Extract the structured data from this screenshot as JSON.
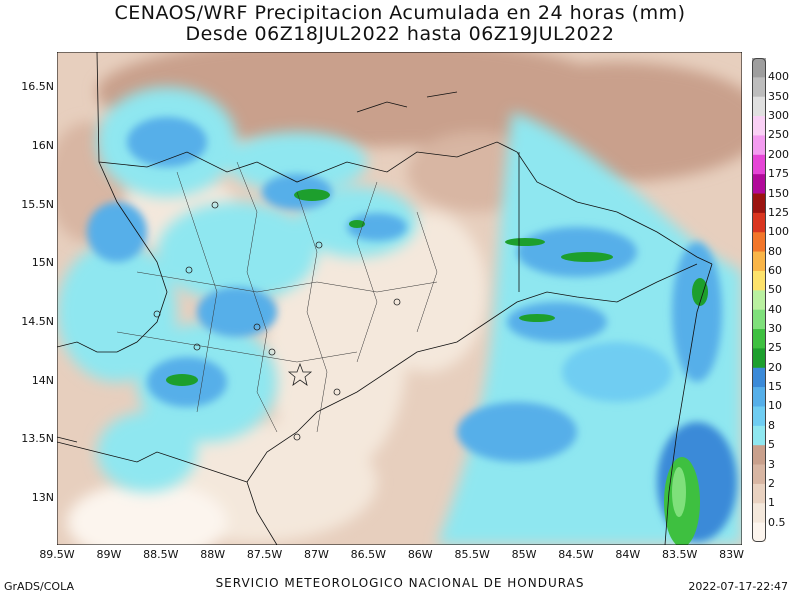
{
  "title_line1": "CENAOS/WRF Precipitacion Acumulada en 24 horas (mm)",
  "title_line2": "Desde 06Z18JUL2022 hasta 06Z19JUL2022",
  "footer_left": "GrADS/COLA",
  "footer_center": "SERVICIO METEOROLOGICO NACIONAL DE HONDURAS",
  "footer_right": "2022-07-17-22:47",
  "map": {
    "lon_range": [
      -89.5,
      -82.9
    ],
    "lat_range": [
      12.6,
      16.8
    ],
    "lat_ticks": [
      "16.5N",
      "16N",
      "15.5N",
      "15N",
      "14.5N",
      "14N",
      "13.5N",
      "13N"
    ],
    "lon_ticks": [
      "89.5W",
      "89W",
      "88.5W",
      "88W",
      "87.5W",
      "87W",
      "86.5W",
      "86W",
      "85.5W",
      "85W",
      "84.5W",
      "84W",
      "83.5W",
      "83W"
    ]
  },
  "legend": {
    "levels": [
      "0.5",
      "1",
      "2",
      "3",
      "5",
      "8",
      "10",
      "15",
      "20",
      "25",
      "30",
      "40",
      "50",
      "60",
      "80",
      "100",
      "125",
      "150",
      "175",
      "200",
      "250",
      "300",
      "350",
      "400"
    ],
    "colors": [
      "#fcf5ee",
      "#f4e8dc",
      "#e9d2c1",
      "#d8b6a3",
      "#c9a08c",
      "#8fe7f0",
      "#6fcdf2",
      "#56afe9",
      "#3b8ad8",
      "#1d9f2d",
      "#3ec040",
      "#7fe07b",
      "#b9f0a0",
      "#fde26b",
      "#f9b548",
      "#f2762a",
      "#d93620",
      "#9b1410",
      "#b10a9a",
      "#e545d6",
      "#f39cf0",
      "#f9d0f5",
      "#e0e0e0",
      "#bdbdbd",
      "#9e9e9e"
    ]
  }
}
